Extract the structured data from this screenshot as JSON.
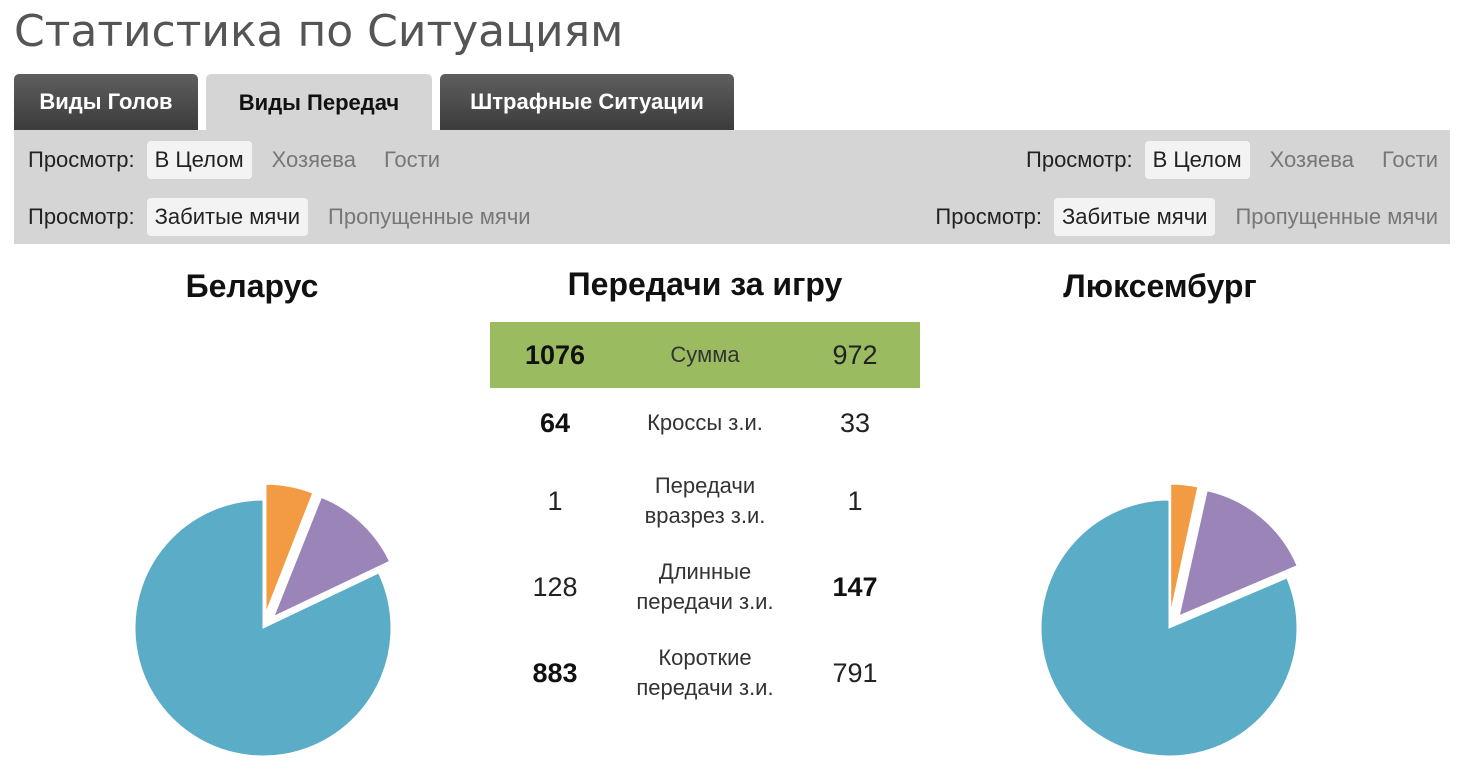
{
  "title": "Статистика по Ситуациям",
  "tabs": [
    {
      "label": "Виды Голов",
      "active": false
    },
    {
      "label": "Виды Передач",
      "active": true
    },
    {
      "label": "Штрафные Ситуации",
      "active": false
    }
  ],
  "filters": {
    "home_view": {
      "label": "Просмотр:",
      "options": [
        "В Целом",
        "Хозяева",
        "Гости"
      ],
      "selected": "В Целом"
    },
    "away_view": {
      "label": "Просмотр:",
      "options": [
        "В Целом",
        "Хозяева",
        "Гости"
      ],
      "selected": "В Целом"
    },
    "home_goals": {
      "label": "Просмотр:",
      "options": [
        "Забитые мячи",
        "Пропущенные мячи"
      ],
      "selected": "Забитые мячи"
    },
    "away_goals": {
      "label": "Просмотр:",
      "options": [
        "Забитые мячи",
        "Пропущенные мячи"
      ],
      "selected": "Забитые мячи"
    }
  },
  "home_team": "Беларус",
  "away_team": "Люксембург",
  "center_title": "Передачи за игру",
  "stats": [
    {
      "home": "1076",
      "label": "Сумма",
      "away": "972",
      "home_bold": true,
      "away_bold": false
    },
    {
      "home": "64",
      "label": "Кроссы з.и.",
      "away": "33",
      "home_bold": true,
      "away_bold": false
    },
    {
      "home": "1",
      "label_l1": "Передачи",
      "label_l2": "вразрез з.и.",
      "away": "1",
      "home_bold": false,
      "away_bold": false
    },
    {
      "home": "128",
      "label_l1": "Длинные",
      "label_l2": "передачи з.и.",
      "away": "147",
      "home_bold": false,
      "away_bold": true
    },
    {
      "home": "883",
      "label_l1": "Короткие",
      "label_l2": "передачи з.и.",
      "away": "791",
      "home_bold": true,
      "away_bold": false
    }
  ],
  "colors": {
    "short_pass": "#5aacc7",
    "long_pass": "#9b85b8",
    "cross": "#f39b43",
    "total_row": "#9bbb61",
    "tab_dark": "#4a4a4a",
    "filter_bar": "#d5d5d5"
  },
  "chart_data": [
    {
      "type": "pie",
      "title": "",
      "categories": [
        "Кроссы з.и.",
        "Передачи вразрез з.и.",
        "Длинные передачи з.и.",
        "Короткие передачи з.и."
      ],
      "values": [
        64,
        1,
        128,
        883
      ]
    },
    {
      "type": "pie",
      "title": "",
      "categories": [
        "Кроссы з.и.",
        "Передачи вразрез з.и.",
        "Длинные передачи з.и.",
        "Короткие передачи з.и."
      ],
      "values": [
        33,
        1,
        147,
        791
      ]
    }
  ]
}
